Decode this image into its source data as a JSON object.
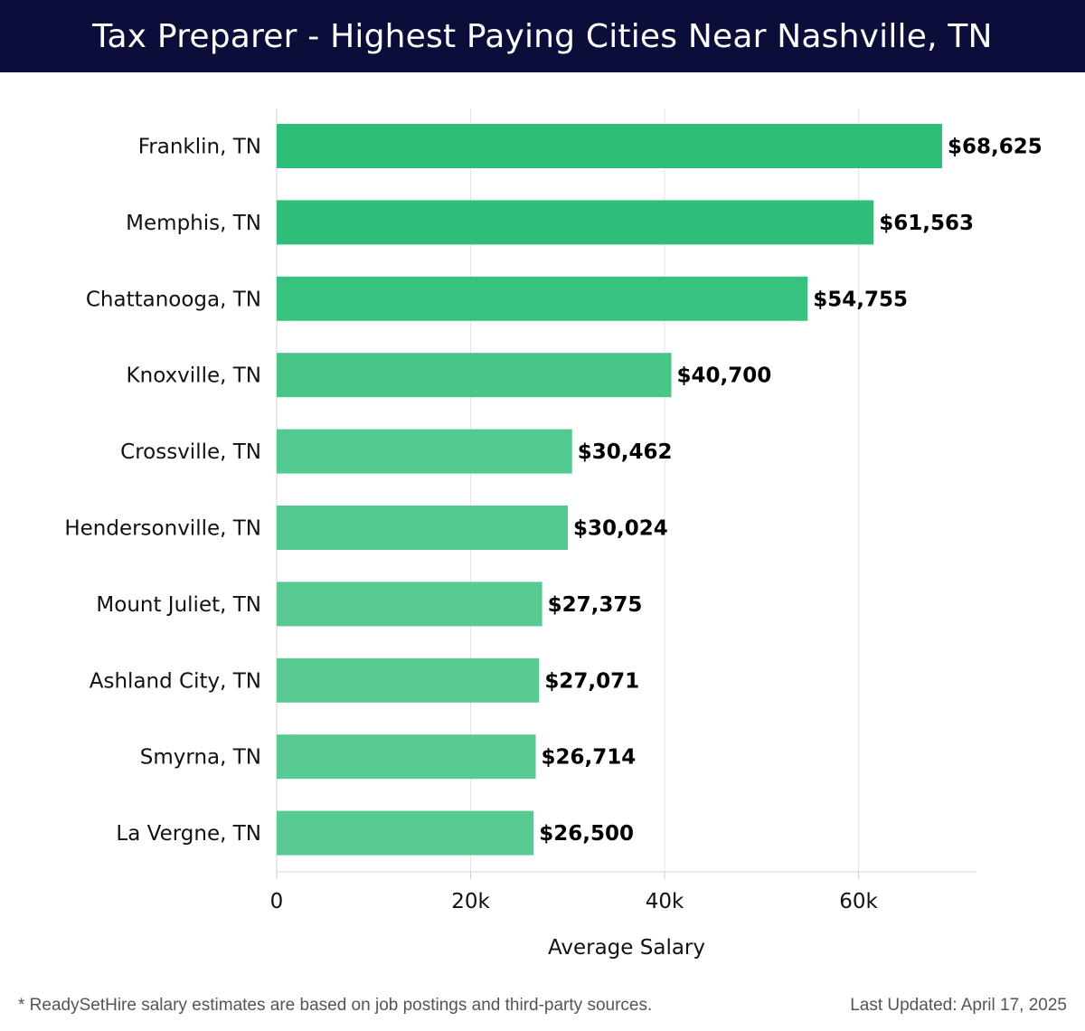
{
  "header": {
    "title": "Tax Preparer - Highest Paying Cities Near Nashville, TN"
  },
  "chart_data": {
    "type": "bar",
    "orientation": "horizontal",
    "title": "Tax Preparer - Highest Paying Cities Near Nashville, TN",
    "xlabel": "Average Salary",
    "ylabel": "",
    "xlim": [
      0,
      72000
    ],
    "xticks": [
      0,
      20000,
      40000,
      60000
    ],
    "xtick_labels": [
      "0",
      "20k",
      "40k",
      "60k"
    ],
    "grid": "vertical",
    "categories": [
      "Franklin, TN",
      "Memphis, TN",
      "Chattanooga, TN",
      "Knoxville, TN",
      "Crossville, TN",
      "Hendersonville, TN",
      "Mount Juliet, TN",
      "Ashland City, TN",
      "Smyrna, TN",
      "La Vergne, TN"
    ],
    "values": [
      68625,
      61563,
      54755,
      40700,
      30462,
      30024,
      27375,
      27071,
      26714,
      26500
    ],
    "value_labels": [
      "$68,625",
      "$61,563",
      "$54,755",
      "$40,700",
      "$30,462",
      "$30,024",
      "$27,375",
      "$27,071",
      "$26,714",
      "$26,500"
    ],
    "colors": [
      "#2dbe78",
      "#30bf7a",
      "#38c27f",
      "#48c688",
      "#52c98e",
      "#53c98f",
      "#56ca91",
      "#57cb92",
      "#58cb93",
      "#58cb93"
    ]
  },
  "footer": {
    "note": "* ReadySetHire salary estimates are based on job postings and third-party sources.",
    "updated": "Last Updated: April 17, 2025"
  }
}
